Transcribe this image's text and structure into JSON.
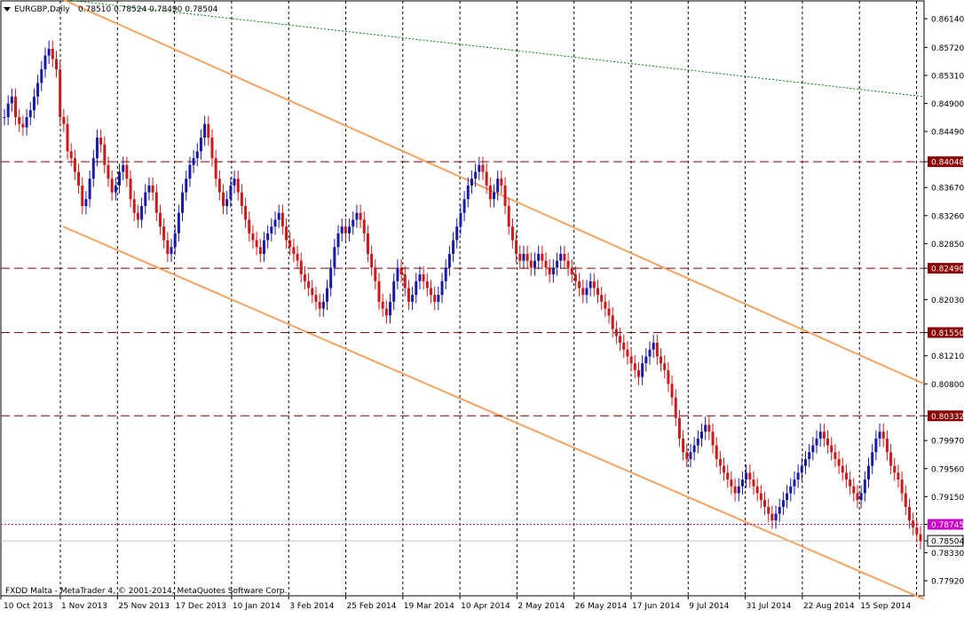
{
  "header": {
    "symbol": "EURGBP,Daily",
    "ohlc": "0.78510 0.78524 0.78490 0.78504"
  },
  "footer": {
    "copyright": "FXDD Malta - MetaTrader 4, © 2001-2014, MetaQuotes Software Corp."
  },
  "chart_data": {
    "type": "candlestick",
    "symbol": "EURGBP",
    "timeframe": "Daily",
    "ylim": [
      0.777,
      0.864
    ],
    "y_ticks": [
      "0.86140",
      "0.85720",
      "0.85310",
      "0.84900",
      "0.84490",
      "0.84048",
      "0.83670",
      "0.83260",
      "0.82850",
      "0.82490",
      "0.82030",
      "0.81550",
      "0.81210",
      "0.80800",
      "0.80332",
      "0.79970",
      "0.79560",
      "0.79150",
      "0.78745",
      "0.78504",
      "0.78330",
      "0.77920"
    ],
    "x_ticks": [
      "10 Oct 2013",
      "1 Nov 2013",
      "25 Nov 2013",
      "17 Dec 2013",
      "10 Jan 2014",
      "3 Feb 2014",
      "25 Feb 2014",
      "19 Mar 2014",
      "10 Apr 2014",
      "2 May 2014",
      "26 May 2014",
      "17 Jun 2014",
      "9 Jul 2014",
      "31 Jul 2014",
      "22 Aug 2014",
      "15 Sep 2014"
    ],
    "grid": true,
    "horizontal_levels": [
      {
        "value": 0.84048,
        "label": "0.84048",
        "style": "dashed",
        "color": "#8b0000"
      },
      {
        "value": 0.8249,
        "label": "0.82490",
        "style": "dashed",
        "color": "#8b0000"
      },
      {
        "value": 0.8155,
        "label": "0.81550",
        "style": "dashed",
        "color": "#8b0000"
      },
      {
        "value": 0.80332,
        "label": "0.80332",
        "style": "dashed",
        "color": "#8b0000"
      },
      {
        "value": 0.78745,
        "label": "0.78745",
        "style": "dotted",
        "color": "#cc00cc"
      },
      {
        "value": 0.78504,
        "label": "0.78504",
        "style": "solid",
        "color": "#c0c0c0",
        "current_price": true
      }
    ],
    "trendlines": [
      {
        "name": "upper-channel",
        "color": "#f4a460",
        "from": {
          "date": "10 Oct 2013",
          "price": 0.8642
        },
        "to": {
          "date": "15 Sep 2014",
          "price": 0.808
        }
      },
      {
        "name": "lower-channel",
        "color": "#f4a460",
        "from": {
          "date": "10 Oct 2013",
          "price": 0.831
        },
        "to": {
          "date": "15 Sep 2014",
          "price": 0.7765
        }
      },
      {
        "name": "dotted-green",
        "color": "#008000",
        "style": "dotted",
        "from": {
          "date": "10 Oct 2013",
          "price": 0.8642
        },
        "to": {
          "date": "15 Sep 2014",
          "price": 0.85
        }
      }
    ],
    "candles_close": [
      0.847,
      0.849,
      0.85,
      0.847,
      0.846,
      0.8455,
      0.847,
      0.848,
      0.85,
      0.852,
      0.854,
      0.856,
      0.857,
      0.8555,
      0.854,
      0.847,
      0.846,
      0.842,
      0.841,
      0.839,
      0.837,
      0.834,
      0.835,
      0.838,
      0.841,
      0.844,
      0.843,
      0.84,
      0.838,
      0.836,
      0.837,
      0.839,
      0.84,
      0.838,
      0.835,
      0.833,
      0.832,
      0.834,
      0.836,
      0.837,
      0.836,
      0.833,
      0.831,
      0.829,
      0.827,
      0.828,
      0.83,
      0.833,
      0.836,
      0.838,
      0.84,
      0.841,
      0.842,
      0.844,
      0.846,
      0.844,
      0.841,
      0.838,
      0.836,
      0.834,
      0.835,
      0.837,
      0.838,
      0.836,
      0.834,
      0.832,
      0.83,
      0.829,
      0.828,
      0.827,
      0.829,
      0.83,
      0.831,
      0.832,
      0.833,
      0.831,
      0.829,
      0.828,
      0.827,
      0.826,
      0.824,
      0.823,
      0.822,
      0.821,
      0.82,
      0.819,
      0.82,
      0.822,
      0.825,
      0.828,
      0.83,
      0.831,
      0.83,
      0.831,
      0.832,
      0.833,
      0.832,
      0.83,
      0.827,
      0.825,
      0.823,
      0.82,
      0.819,
      0.818,
      0.82,
      0.823,
      0.825,
      0.824,
      0.822,
      0.82,
      0.821,
      0.823,
      0.824,
      0.823,
      0.822,
      0.821,
      0.82,
      0.821,
      0.823,
      0.825,
      0.827,
      0.829,
      0.831,
      0.833,
      0.835,
      0.837,
      0.838,
      0.839,
      0.84,
      0.839,
      0.837,
      0.835,
      0.836,
      0.838,
      0.837,
      0.834,
      0.831,
      0.829,
      0.827,
      0.826,
      0.827,
      0.826,
      0.825,
      0.826,
      0.827,
      0.826,
      0.825,
      0.824,
      0.825,
      0.826,
      0.827,
      0.826,
      0.825,
      0.824,
      0.823,
      0.822,
      0.821,
      0.822,
      0.823,
      0.822,
      0.821,
      0.82,
      0.819,
      0.818,
      0.816,
      0.815,
      0.814,
      0.813,
      0.812,
      0.811,
      0.81,
      0.809,
      0.811,
      0.812,
      0.813,
      0.814,
      0.812,
      0.811,
      0.81,
      0.808,
      0.806,
      0.803,
      0.8,
      0.798,
      0.797,
      0.798,
      0.799,
      0.8,
      0.801,
      0.802,
      0.801,
      0.799,
      0.797,
      0.796,
      0.795,
      0.794,
      0.793,
      0.792,
      0.793,
      0.794,
      0.795,
      0.794,
      0.793,
      0.792,
      0.791,
      0.79,
      0.789,
      0.788,
      0.789,
      0.79,
      0.791,
      0.792,
      0.793,
      0.794,
      0.795,
      0.796,
      0.797,
      0.798,
      0.799,
      0.8,
      0.801,
      0.8,
      0.799,
      0.798,
      0.797,
      0.796,
      0.795,
      0.794,
      0.793,
      0.792,
      0.791,
      0.792,
      0.794,
      0.796,
      0.798,
      0.8,
      0.801,
      0.8,
      0.798,
      0.796,
      0.795,
      0.794,
      0.792,
      0.79,
      0.788,
      0.787,
      0.786,
      0.785
    ]
  }
}
